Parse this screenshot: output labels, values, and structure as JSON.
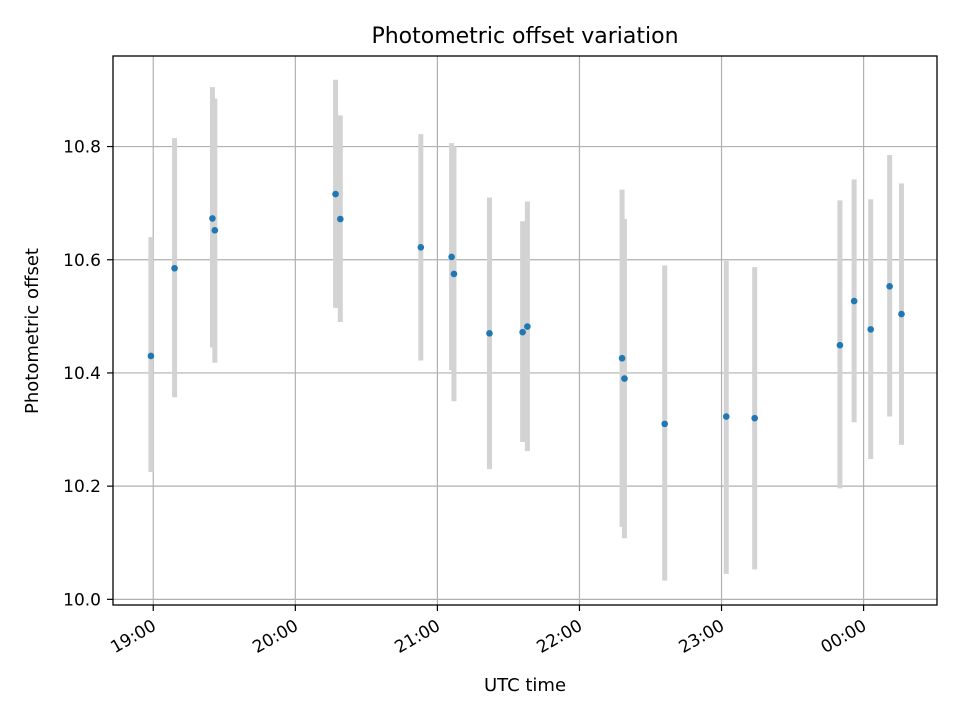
{
  "chart_data": {
    "type": "scatter",
    "title": "Photometric offset variation",
    "xlabel": "UTC time",
    "ylabel": "Photometric offset",
    "x_axis_kind": "time",
    "ylim": [
      9.99,
      10.96
    ],
    "xlim": [
      "18:43",
      "00:31"
    ],
    "x_ticks": [
      "19:00",
      "20:00",
      "21:00",
      "22:00",
      "23:00",
      "00:00"
    ],
    "y_ticks": [
      "10.0",
      "10.2",
      "10.4",
      "10.6",
      "10.8"
    ],
    "grid": true,
    "colors": {
      "marker": "#1f77b4",
      "errorbar": "#d3d3d3",
      "grid": "#b0b0b0"
    },
    "points": [
      {
        "x": "18:59",
        "y": 10.43,
        "y_low": 10.225,
        "y_high": 10.64
      },
      {
        "x": "19:09",
        "y": 10.585,
        "y_low": 10.357,
        "y_high": 10.815
      },
      {
        "x": "19:25",
        "y": 10.673,
        "y_low": 10.445,
        "y_high": 10.905
      },
      {
        "x": "19:26",
        "y": 10.652,
        "y_low": 10.418,
        "y_high": 10.885
      },
      {
        "x": "20:17",
        "y": 10.716,
        "y_low": 10.515,
        "y_high": 10.918
      },
      {
        "x": "20:19",
        "y": 10.672,
        "y_low": 10.49,
        "y_high": 10.855
      },
      {
        "x": "20:53",
        "y": 10.622,
        "y_low": 10.422,
        "y_high": 10.822
      },
      {
        "x": "21:06",
        "y": 10.605,
        "y_low": 10.405,
        "y_high": 10.806
      },
      {
        "x": "21:07",
        "y": 10.575,
        "y_low": 10.35,
        "y_high": 10.8
      },
      {
        "x": "21:22",
        "y": 10.47,
        "y_low": 10.23,
        "y_high": 10.71
      },
      {
        "x": "21:36",
        "y": 10.472,
        "y_low": 10.278,
        "y_high": 10.668
      },
      {
        "x": "21:38",
        "y": 10.482,
        "y_low": 10.262,
        "y_high": 10.703
      },
      {
        "x": "22:18",
        "y": 10.426,
        "y_low": 10.128,
        "y_high": 10.724
      },
      {
        "x": "22:19",
        "y": 10.39,
        "y_low": 10.108,
        "y_high": 10.672
      },
      {
        "x": "22:36",
        "y": 10.31,
        "y_low": 10.033,
        "y_high": 10.59
      },
      {
        "x": "23:02",
        "y": 10.323,
        "y_low": 10.045,
        "y_high": 10.598
      },
      {
        "x": "23:14",
        "y": 10.32,
        "y_low": 10.053,
        "y_high": 10.587
      },
      {
        "x": "23:50",
        "y": 10.449,
        "y_low": 10.196,
        "y_high": 10.705
      },
      {
        "x": "23:56",
        "y": 10.527,
        "y_low": 10.313,
        "y_high": 10.742
      },
      {
        "x": "00:03",
        "y": 10.477,
        "y_low": 10.248,
        "y_high": 10.707
      },
      {
        "x": "00:11",
        "y": 10.553,
        "y_low": 10.323,
        "y_high": 10.785
      },
      {
        "x": "00:16",
        "y": 10.504,
        "y_low": 10.273,
        "y_high": 10.735
      }
    ]
  }
}
